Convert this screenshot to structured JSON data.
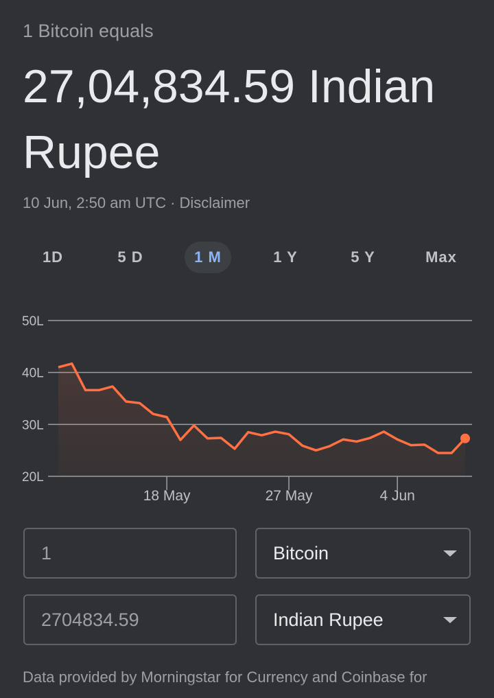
{
  "header": {
    "subtitle": "1 Bitcoin equals",
    "value": "27,04,834.59 Indian Rupee",
    "timestamp": "10 Jun, 2:50 am UTC",
    "separator": "·",
    "disclaimer": "Disclaimer"
  },
  "tabs": [
    {
      "label": "1D",
      "active": false
    },
    {
      "label": "5 D",
      "active": false
    },
    {
      "label": "1 M",
      "active": true
    },
    {
      "label": "1 Y",
      "active": false
    },
    {
      "label": "5 Y",
      "active": false
    },
    {
      "label": "Max",
      "active": false
    }
  ],
  "chart_data": {
    "type": "area",
    "y_ticks": [
      "50L",
      "40L",
      "30L",
      "20L"
    ],
    "ylim": [
      20,
      50
    ],
    "x_tick_labels": [
      "18 May",
      "27 May",
      "4 Jun"
    ],
    "x_tick_index": [
      8,
      17,
      25
    ],
    "series": [
      {
        "values": [
          41.0,
          41.7,
          36.6,
          36.6,
          37.3,
          34.4,
          34.1,
          32.0,
          31.4,
          27.0,
          29.8,
          27.3,
          27.4,
          25.3,
          28.5,
          27.9,
          28.6,
          28.1,
          25.9,
          25.0,
          25.8,
          27.1,
          26.7,
          27.4,
          28.6,
          27.1,
          26.0,
          26.1,
          24.5,
          24.5,
          27.3
        ],
        "color": "#ff7043"
      }
    ],
    "line_color": "#ff7043",
    "grid": true
  },
  "converter": {
    "amount_from": "1",
    "amount_to": "2704834.59",
    "currency_from": "Bitcoin",
    "currency_to": "Indian Rupee"
  },
  "footer": {
    "text": "Data provided by Morningstar for Currency and Coinbase for"
  },
  "icons": {
    "dropdown": "chevron-down-icon"
  }
}
